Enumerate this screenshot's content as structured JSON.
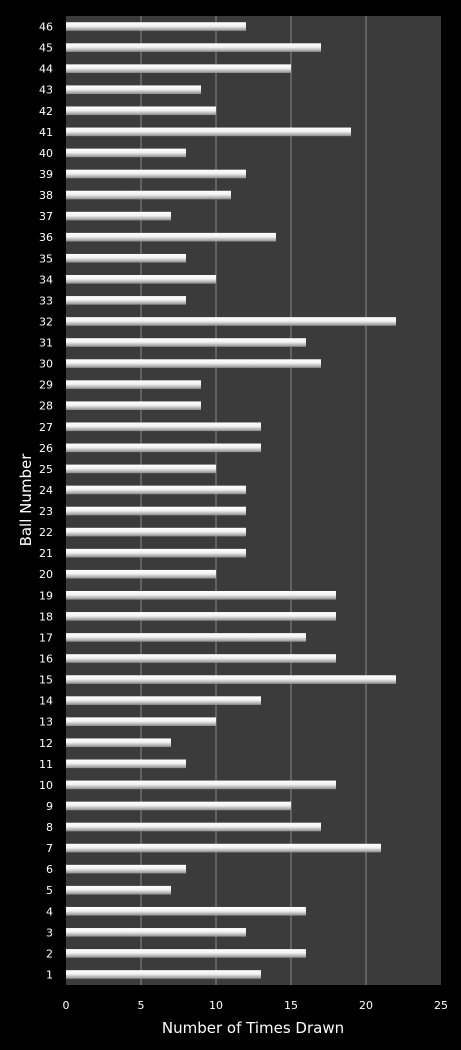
{
  "chart_data": {
    "type": "bar",
    "orientation": "horizontal",
    "title": "",
    "xlabel": "Number of Times Drawn",
    "ylabel": "Ball Number",
    "xlim": [
      0,
      25
    ],
    "xticks": [
      0,
      5,
      10,
      15,
      20,
      25
    ],
    "grid": "vertical",
    "legend": "none",
    "colors": {
      "background": "#000000",
      "plot_area": "#3b3b3b",
      "gridline": "#8a8a8a",
      "bar_light": "#ffffff",
      "bar_dark": "#8c8c8c",
      "text": "#ffffff"
    },
    "categories": [
      "1",
      "2",
      "3",
      "4",
      "5",
      "6",
      "7",
      "8",
      "9",
      "10",
      "11",
      "12",
      "13",
      "14",
      "15",
      "16",
      "17",
      "18",
      "19",
      "20",
      "21",
      "22",
      "23",
      "24",
      "25",
      "26",
      "27",
      "28",
      "29",
      "30",
      "31",
      "32",
      "33",
      "34",
      "35",
      "36",
      "37",
      "38",
      "39",
      "40",
      "41",
      "42",
      "43",
      "44",
      "45",
      "46"
    ],
    "series": [
      {
        "values": [
          13,
          16,
          12,
          16,
          7,
          8,
          21,
          17,
          15,
          18,
          8,
          7,
          10,
          13,
          22,
          18,
          16,
          18,
          18,
          10,
          12,
          12,
          12,
          12,
          10,
          13,
          13,
          9,
          9,
          17,
          16,
          22,
          8,
          10,
          8,
          14,
          7,
          11,
          12,
          8,
          19,
          10,
          9,
          15,
          17,
          12
        ]
      }
    ]
  }
}
